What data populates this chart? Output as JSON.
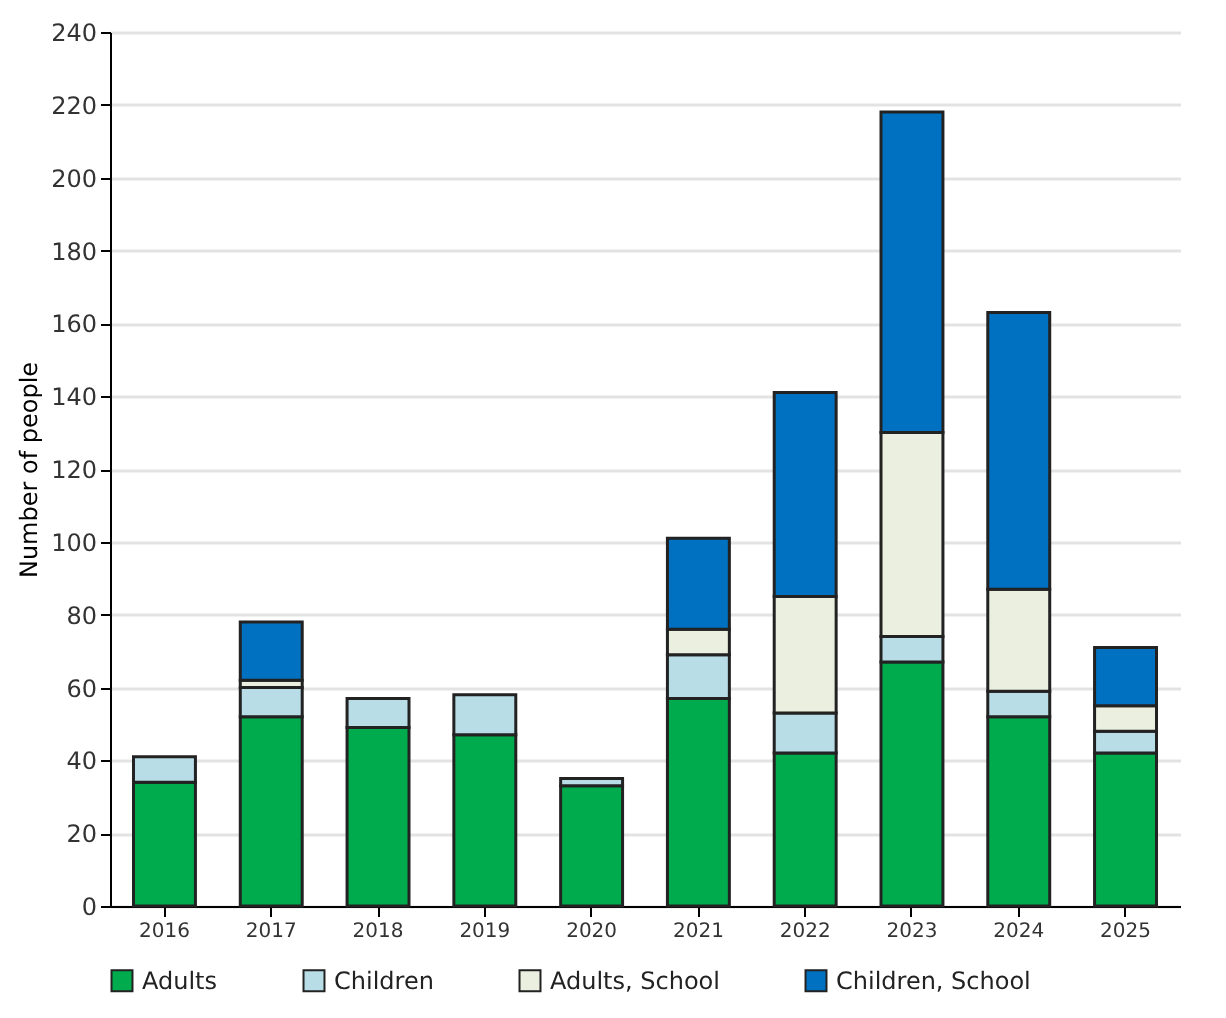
{
  "chart_data": {
    "type": "bar",
    "stacked": true,
    "ylabel": "Number of people",
    "categories": [
      "2016",
      "2017",
      "2018",
      "2019",
      "2020",
      "2021",
      "2022",
      "2023",
      "2024",
      "2025"
    ],
    "series": [
      {
        "name": "Adults",
        "color": "#00ab4e",
        "values": [
          34,
          52,
          49,
          47,
          33,
          57,
          42,
          67,
          52,
          42
        ]
      },
      {
        "name": "Children",
        "color": "#b8dde6",
        "values": [
          7,
          8,
          8,
          11,
          2,
          12,
          11,
          7,
          7,
          6
        ]
      },
      {
        "name": "Adults, School",
        "color": "#ebefdf",
        "values": [
          null,
          2,
          null,
          null,
          null,
          7,
          32,
          56,
          28,
          7
        ]
      },
      {
        "name": "Children, School",
        "color": "#0070c0",
        "values": [
          null,
          16,
          null,
          null,
          null,
          25,
          56,
          88,
          76,
          16
        ]
      }
    ],
    "ylim": [
      0,
      240
    ],
    "yticks": [
      0,
      20,
      40,
      60,
      80,
      100,
      120,
      140,
      160,
      180,
      200,
      220,
      240
    ],
    "grid": "y",
    "legend": "bottom"
  }
}
